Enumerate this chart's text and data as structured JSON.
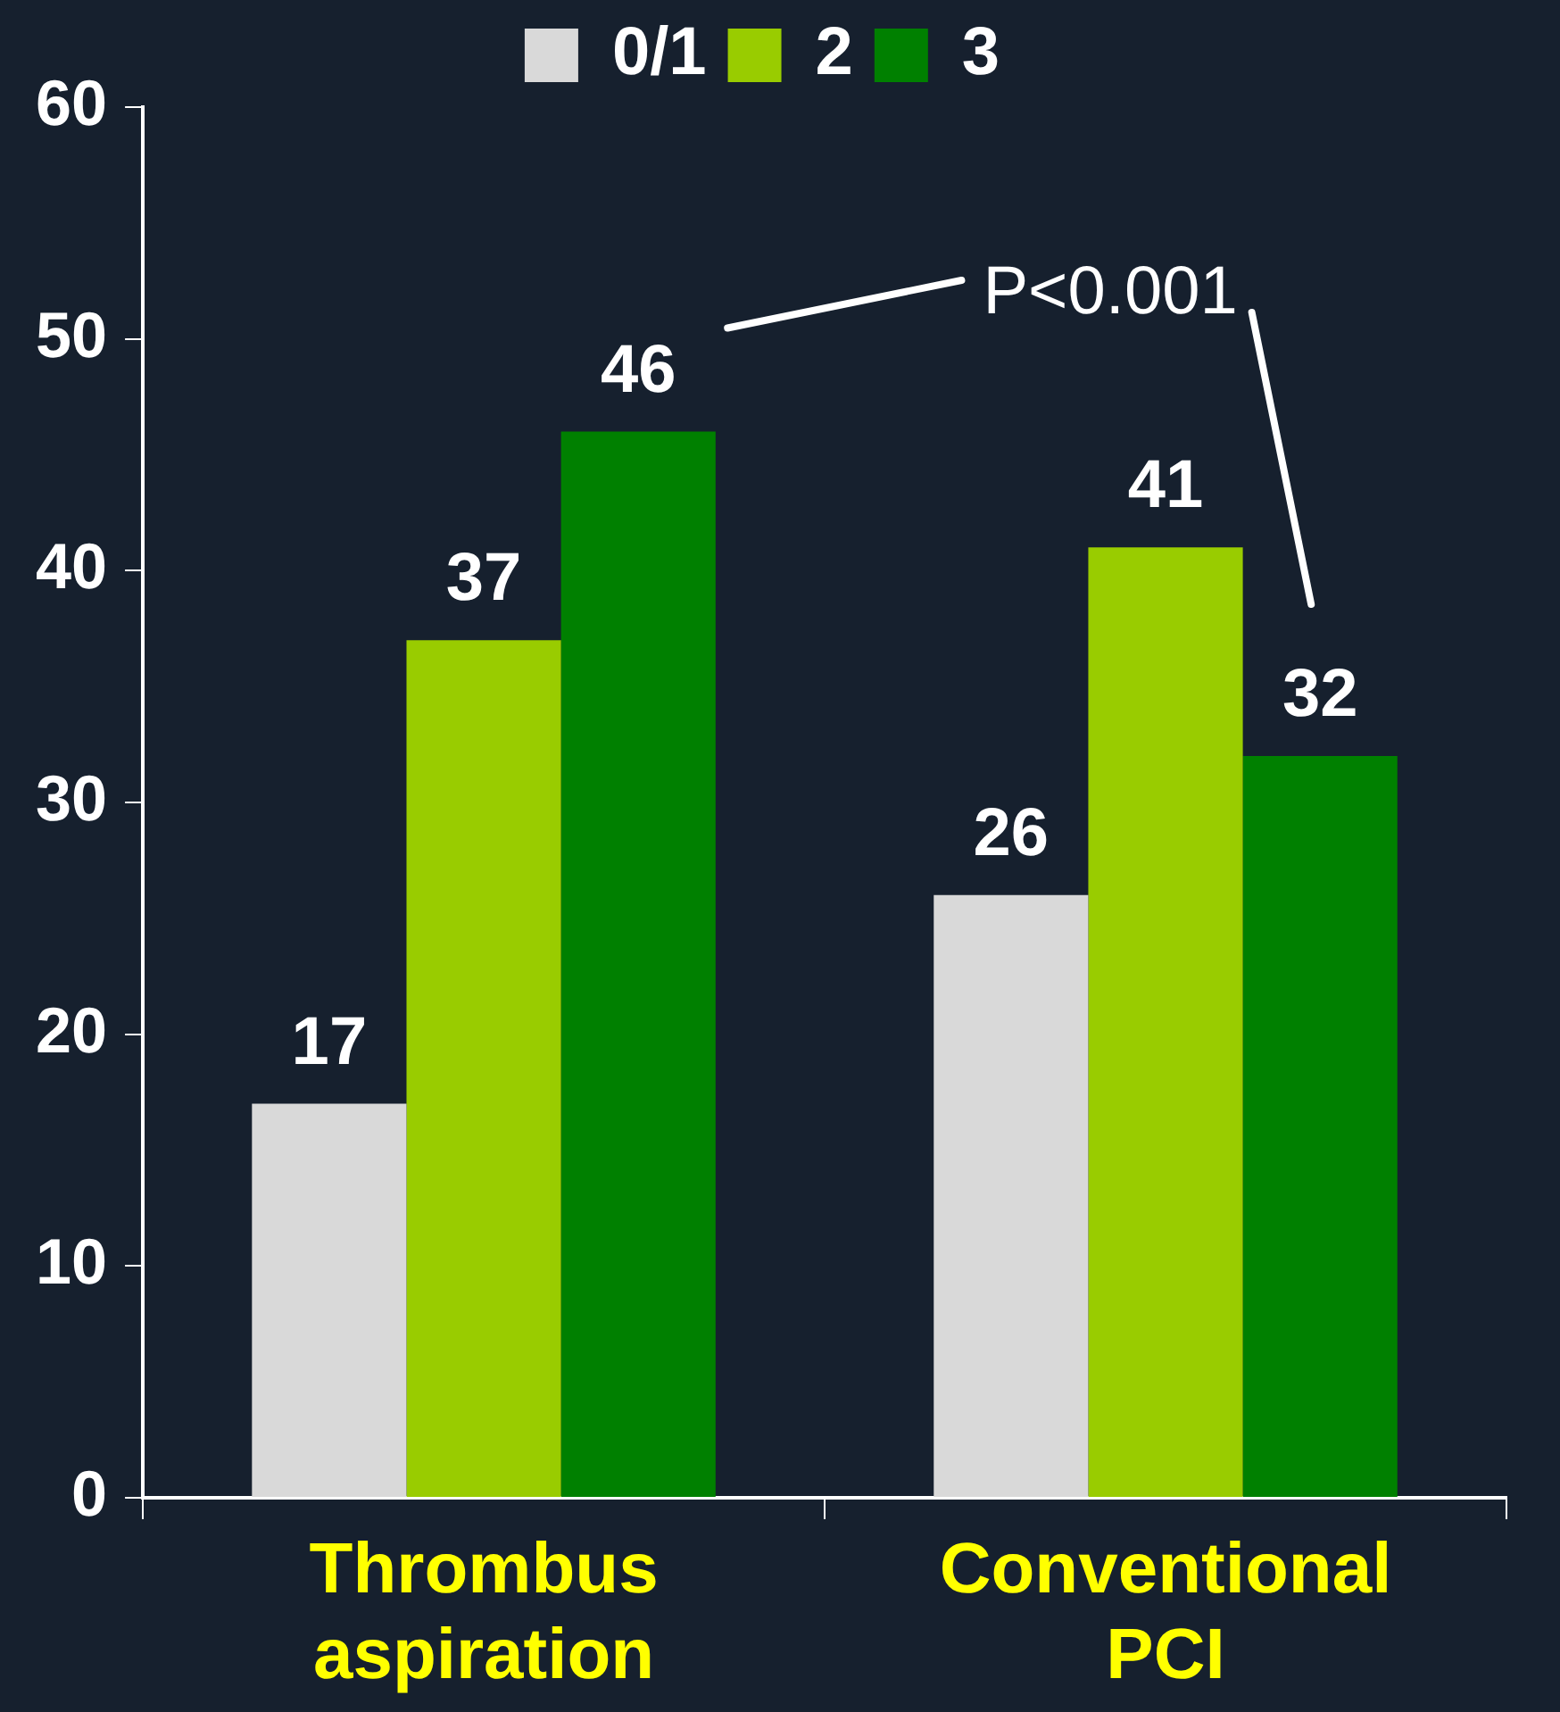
{
  "chart_data": {
    "type": "bar",
    "categories": [
      "Thrombus aspiration",
      "Conventional PCI"
    ],
    "series": [
      {
        "name": "0/1",
        "color": "#d9d9d9",
        "values": [
          17,
          26
        ]
      },
      {
        "name": "2",
        "color": "#99cc00",
        "values": [
          37,
          41
        ]
      },
      {
        "name": "3",
        "color": "#008000",
        "values": [
          46,
          32
        ]
      }
    ],
    "ylim": [
      0,
      60
    ],
    "yticks": [
      0,
      10,
      20,
      30,
      40,
      50,
      60
    ],
    "grid": false,
    "legend": "top",
    "data_labels": true,
    "annotations": [
      "P<0.001"
    ]
  }
}
